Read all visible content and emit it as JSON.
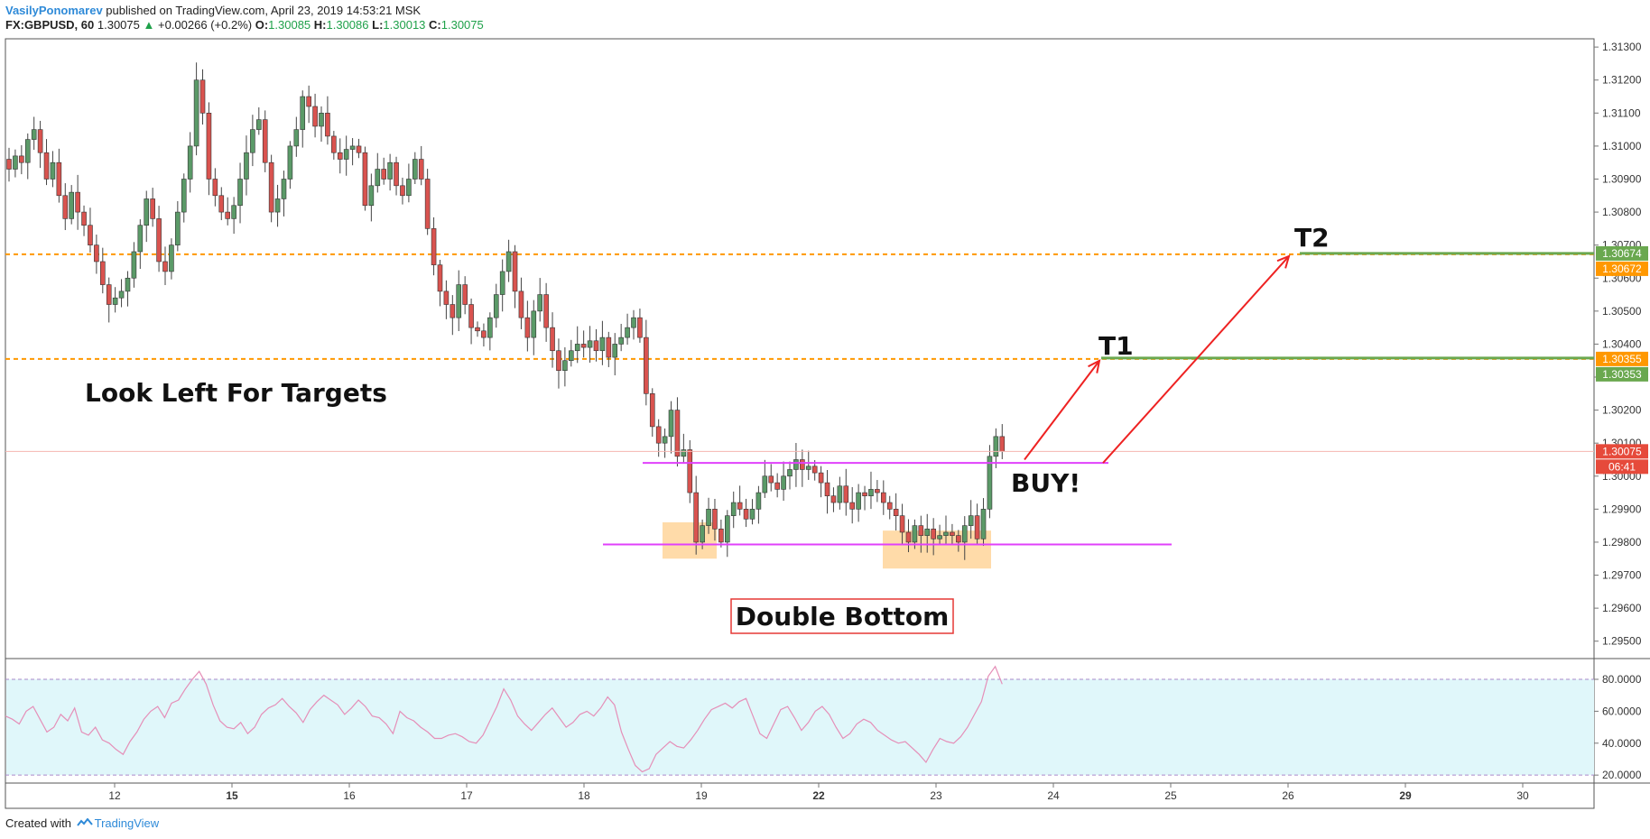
{
  "header": {
    "author": "VasilyPonomarev",
    "published": " published on TradingView.com, April 23, 2019 14:53:21 MSK",
    "symbol": "FX:GBPUSD, 60",
    "last": "1.30075",
    "change_icon": "triangle-up-icon",
    "change": "+0.00266 (+0.2%)",
    "o_label": "O:",
    "o": "1.30085",
    "h_label": "H:",
    "h": "1.30086",
    "l_label": "L:",
    "l": "1.30013",
    "c_label": "C:",
    "c": "1.30075"
  },
  "footer": {
    "created_with": "Created with",
    "brand": "TradingView",
    "logo_icon": "tradingview-logo-icon"
  },
  "colors": {
    "up": "#5b9a68",
    "down": "#d9534f",
    "candle_outline": "#333333",
    "target_line": "#ff9800",
    "target_green": "#6aa84f",
    "magenta": "#e040fb",
    "arrow": "#ee2222",
    "rsi_band": "#e0f7fa",
    "rsi_line": "#e58fb8",
    "price_label": "#e64a3b",
    "pos_text": "#1fa14a"
  },
  "chart_data": [
    {
      "type": "candlestick",
      "title": "",
      "x_ticks": [
        "12",
        "15",
        "16",
        "17",
        "18",
        "19",
        "22",
        "23",
        "24",
        "25",
        "26",
        "29",
        "30"
      ],
      "y_ticks": [
        "1.31300",
        "1.31200",
        "1.31100",
        "1.31000",
        "1.30900",
        "1.30800",
        "1.30700",
        "1.30600",
        "1.30500",
        "1.30400",
        "1.30300",
        "1.30200",
        "1.30100",
        "1.30000",
        "1.29900",
        "1.29800",
        "1.29700",
        "1.29600",
        "1.29500"
      ],
      "ylim": [
        1.2945,
        1.31325
      ],
      "close_series": [
        1.3093,
        1.3097,
        1.3095,
        1.3102,
        1.3105,
        1.3098,
        1.309,
        1.3095,
        1.3085,
        1.3078,
        1.3086,
        1.308,
        1.3076,
        1.307,
        1.3065,
        1.3058,
        1.3052,
        1.3054,
        1.3056,
        1.306,
        1.3068,
        1.3076,
        1.3084,
        1.3078,
        1.3065,
        1.3062,
        1.307,
        1.308,
        1.309,
        1.31,
        1.312,
        1.311,
        1.309,
        1.3085,
        1.308,
        1.3078,
        1.3082,
        1.309,
        1.3098,
        1.3105,
        1.3108,
        1.3095,
        1.308,
        1.3084,
        1.309,
        1.31,
        1.3105,
        1.3115,
        1.3112,
        1.3106,
        1.311,
        1.3103,
        1.3098,
        1.3096,
        1.3099,
        1.31,
        1.3098,
        1.3082,
        1.3088,
        1.3093,
        1.309,
        1.3095,
        1.3088,
        1.3085,
        1.309,
        1.3096,
        1.309,
        1.3075,
        1.3064,
        1.3056,
        1.3052,
        1.3048,
        1.3058,
        1.3052,
        1.3045,
        1.3044,
        1.3042,
        1.3048,
        1.3055,
        1.3062,
        1.3068,
        1.3056,
        1.3048,
        1.3042,
        1.305,
        1.3055,
        1.3045,
        1.3038,
        1.3032,
        1.3035,
        1.3038,
        1.304,
        1.3039,
        1.3041,
        1.3038,
        1.3042,
        1.3036,
        1.304,
        1.3042,
        1.3045,
        1.3048,
        1.3042,
        1.3025,
        1.3015,
        1.301,
        1.3012,
        1.302,
        1.3006,
        1.3008,
        1.2995,
        1.298,
        1.2985,
        1.299,
        1.2984,
        1.298,
        1.2988,
        1.2992,
        1.299,
        1.2987,
        1.299,
        1.2995,
        1.3,
        1.2998,
        1.2996,
        1.3,
        1.3002,
        1.3005,
        1.3002,
        1.3003,
        1.3001,
        1.2998,
        1.2994,
        1.2992,
        1.2997,
        1.2992,
        1.299,
        1.2995,
        1.2994,
        1.2996,
        1.2995,
        1.2992,
        1.299,
        1.2988,
        1.2983,
        1.298,
        1.2985,
        1.2982,
        1.2984,
        1.2981,
        1.2982,
        1.2983,
        1.2982,
        1.298,
        1.2985,
        1.2988,
        1.2981,
        1.299,
        1.3006,
        1.3012,
        1.30075
      ],
      "resistance_levels": [
        {
          "price": 1.30672,
          "left_label": "1.30674",
          "right_label": "1.30672"
        },
        {
          "price": 1.30355,
          "left_label": "1.30355",
          "right_label": "1.30353"
        }
      ],
      "last_price_label": "1.30075",
      "timer_label": "06:41",
      "annotations": {
        "look_left": "Look Left For Targets",
        "t1": "T1",
        "t2": "T2",
        "buy": "BUY!",
        "double_bottom": "Double Bottom"
      }
    },
    {
      "type": "line",
      "title": "",
      "y_ticks": [
        "80.0000",
        "60.0000",
        "40.0000",
        "20.0000"
      ],
      "ylim": [
        15,
        93
      ],
      "band": [
        20,
        80
      ],
      "values": [
        57,
        55,
        52,
        60,
        63,
        55,
        47,
        50,
        58,
        54,
        62,
        47,
        45,
        50,
        42,
        40,
        36,
        33,
        41,
        47,
        55,
        60,
        63,
        56,
        65,
        67,
        74,
        80,
        85,
        77,
        64,
        54,
        50,
        49,
        53,
        46,
        50,
        58,
        62,
        64,
        68,
        63,
        59,
        53,
        61,
        66,
        70,
        67,
        64,
        58,
        62,
        67,
        63,
        57,
        56,
        52,
        46,
        60,
        56,
        54,
        50,
        47,
        43,
        43,
        45,
        46,
        44,
        41,
        40,
        45,
        54,
        63,
        74,
        67,
        57,
        52,
        48,
        53,
        58,
        62,
        56,
        50,
        53,
        58,
        60,
        57,
        62,
        69,
        64,
        47,
        36,
        26,
        22,
        24,
        33,
        37,
        41,
        38,
        37,
        42,
        48,
        55,
        61,
        63,
        65,
        62,
        66,
        68,
        57,
        46,
        43,
        52,
        61,
        63,
        56,
        48,
        53,
        60,
        63,
        58,
        50,
        43,
        46,
        52,
        55,
        53,
        48,
        45,
        42,
        40,
        41,
        37,
        33,
        28,
        36,
        43,
        41,
        40,
        44,
        50,
        58,
        66,
        82,
        88,
        77
      ]
    }
  ]
}
